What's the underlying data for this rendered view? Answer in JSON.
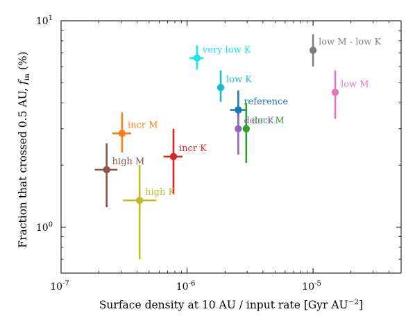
{
  "chart_data": {
    "type": "scatter",
    "title": "",
    "xlabel": {
      "text": "Surface density at 10 AU / input rate [Gyr AU",
      "sup": "−2",
      "suffix": "]"
    },
    "ylabel": {
      "text": "Fraction that crossed 0.5 AU, ",
      "var": "f",
      "sub": "in",
      "suffix": " (%)"
    },
    "xscale": "log",
    "yscale": "log",
    "xlim": [
      1e-07,
      5e-05
    ],
    "ylim": [
      0.6,
      10
    ],
    "grid": false,
    "x_ticks": [
      {
        "value": 1e-07,
        "base": "10",
        "exp": "-7"
      },
      {
        "value": 1e-06,
        "base": "10",
        "exp": "-6"
      },
      {
        "value": 1e-05,
        "base": "10",
        "exp": "-5"
      }
    ],
    "y_ticks": [
      {
        "value": 1,
        "base": "10",
        "exp": "0"
      },
      {
        "value": 10,
        "base": "10",
        "exp": "1"
      }
    ],
    "series": [
      {
        "name": "very low K",
        "color": "#17e5e6",
        "x": 1.2e-06,
        "y": 6.6,
        "x_err": [
          1.05e-06,
          1.35e-06
        ],
        "y_err": [
          5.8,
          7.6
        ]
      },
      {
        "name": "low K",
        "color": "#17becf",
        "x": 1.85e-06,
        "y": 4.75,
        "x_err": null,
        "y_err": [
          4.05,
          5.75
        ]
      },
      {
        "name": "reference",
        "color": "#1f77b4",
        "x": 2.55e-06,
        "y": 3.7,
        "x_err": [
          2.2e-06,
          2.95e-06
        ],
        "y_err": [
          3.0,
          4.6
        ]
      },
      {
        "name": "decr M",
        "color": "#2ca02c",
        "x": 2.95e-06,
        "y": 3.0,
        "x_err": null,
        "y_err": [
          2.05,
          4.0
        ]
      },
      {
        "name": "decr K",
        "color": "#9467bd",
        "x": 2.55e-06,
        "y": 3.0,
        "x_err": null,
        "y_err": [
          2.25,
          3.5
        ]
      },
      {
        "name": "low M - low K",
        "color": "#7f7f7f",
        "x": 1e-05,
        "y": 7.2,
        "x_err": null,
        "y_err": [
          6.0,
          8.6
        ]
      },
      {
        "name": "low M",
        "color": "#e377c2",
        "x": 1.5e-05,
        "y": 4.5,
        "x_err": null,
        "y_err": [
          3.35,
          5.75
        ]
      },
      {
        "name": "incr M",
        "color": "#ff7f0e",
        "x": 3.05e-07,
        "y": 2.85,
        "x_err": [
          2.55e-07,
          3.6e-07
        ],
        "y_err": [
          2.3,
          3.6
        ]
      },
      {
        "name": "incr K",
        "color": "#d62728",
        "x": 7.8e-07,
        "y": 2.2,
        "x_err": [
          6.5e-07,
          9.2e-07
        ],
        "y_err": [
          1.45,
          3.0
        ]
      },
      {
        "name": "high M",
        "color": "#8c564b",
        "x": 2.3e-07,
        "y": 1.9,
        "x_err": [
          1.85e-07,
          2.8e-07
        ],
        "y_err": [
          1.25,
          2.55
        ]
      },
      {
        "name": "high K",
        "color": "#bcbd22",
        "x": 4.2e-07,
        "y": 1.35,
        "x_err": [
          3.1e-07,
          5.7e-07
        ],
        "y_err": [
          0.7,
          2.0
        ]
      }
    ]
  }
}
